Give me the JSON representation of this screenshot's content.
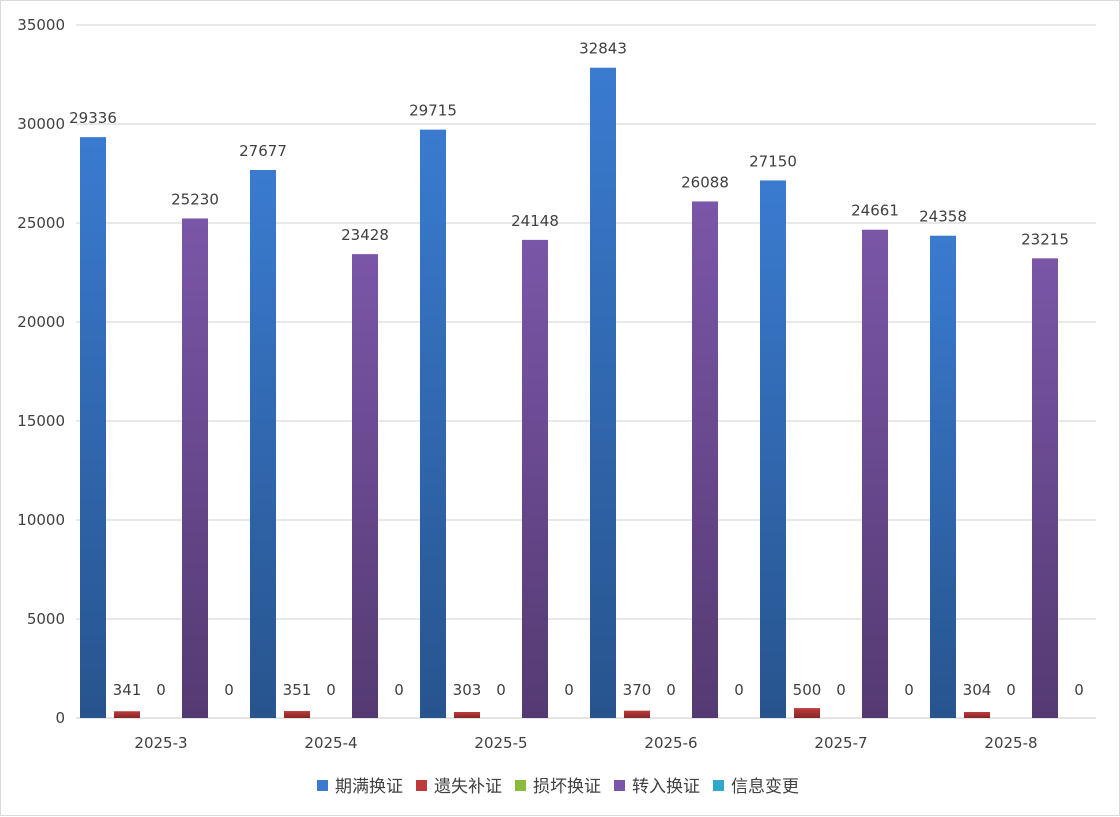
{
  "chart_data": {
    "type": "bar",
    "title": "",
    "xlabel": "",
    "ylabel": "",
    "ylim": [
      0,
      35000
    ],
    "yticks": [
      0,
      5000,
      10000,
      15000,
      20000,
      25000,
      30000,
      35000
    ],
    "grid": true,
    "legend_position": "bottom",
    "categories": [
      "2025-3",
      "2025-4",
      "2025-5",
      "2025-6",
      "2025-7",
      "2025-8"
    ],
    "series": [
      {
        "name": "期满换证",
        "color": "#3a7bd0",
        "values": [
          29336,
          27677,
          29715,
          32843,
          27150,
          24358
        ]
      },
      {
        "name": "遗失补证",
        "color": "#c0393b",
        "values": [
          341,
          351,
          303,
          370,
          500,
          304
        ]
      },
      {
        "name": "损坏换证",
        "color": "#8cba3c",
        "values": [
          0,
          0,
          0,
          0,
          0,
          0
        ]
      },
      {
        "name": "转入换证",
        "color": "#7b56a8",
        "values": [
          25230,
          23428,
          24148,
          26088,
          24661,
          23215
        ]
      },
      {
        "name": "信息变更",
        "color": "#2fa8c9",
        "values": [
          0,
          0,
          0,
          0,
          0,
          0
        ]
      }
    ]
  }
}
